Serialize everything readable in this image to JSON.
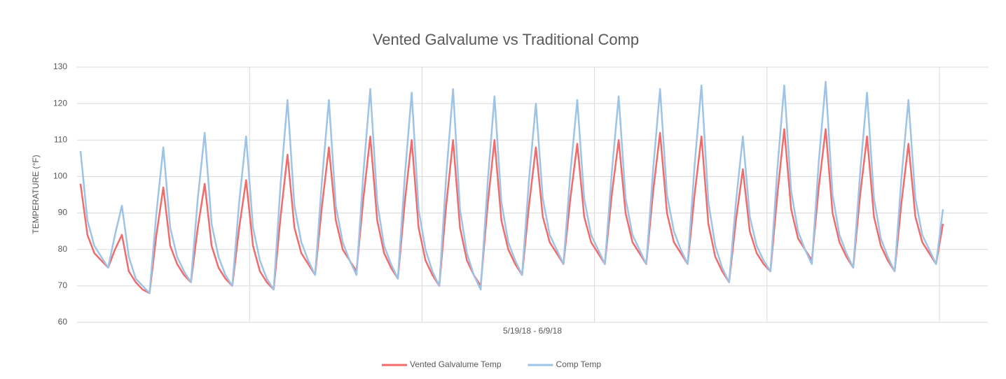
{
  "chart_data": {
    "type": "line",
    "title": "Vented Galvalume vs Traditional Comp",
    "x_label": "5/19/18 - 6/9/18",
    "y_label": "TEMPERATURE (°F)",
    "ylim": [
      60,
      130
    ],
    "yticks": [
      60,
      70,
      80,
      90,
      100,
      110,
      120,
      130
    ],
    "xlim": [
      0,
      132
    ],
    "xgrid_interval": 25,
    "grid": true,
    "legend": "bottom",
    "series": [
      {
        "name": "Vented Galvalume Temp",
        "color": "#f26b6b",
        "values": [
          98,
          84,
          79,
          77,
          75,
          80,
          84,
          74,
          71,
          69,
          68,
          84,
          97,
          81,
          76,
          73,
          71,
          86,
          98,
          81,
          75,
          72,
          70,
          86,
          99,
          81,
          74,
          71,
          69,
          89,
          106,
          86,
          79,
          76,
          73,
          92,
          108,
          88,
          80,
          77,
          74,
          94,
          111,
          88,
          79,
          75,
          72,
          93,
          110,
          86,
          77,
          73,
          70,
          92,
          110,
          86,
          77,
          73,
          70,
          92,
          110,
          88,
          80,
          76,
          73,
          92,
          108,
          89,
          82,
          79,
          76,
          94,
          109,
          89,
          82,
          79,
          76,
          95,
          110,
          90,
          82,
          79,
          76,
          96,
          112,
          90,
          82,
          79,
          76,
          95,
          111,
          87,
          78,
          74,
          71,
          88,
          102,
          85,
          79,
          76,
          74,
          95,
          113,
          91,
          83,
          80,
          77,
          97,
          113,
          90,
          82,
          78,
          75,
          95,
          111,
          89,
          81,
          77,
          74,
          93,
          109,
          89,
          82,
          79,
          76,
          87
        ]
      },
      {
        "name": "Comp Temp",
        "color": "#9dc3e6",
        "values": [
          107,
          88,
          81,
          78,
          75,
          84,
          92,
          78,
          72,
          70,
          68,
          90,
          108,
          86,
          78,
          74,
          71,
          94,
          112,
          87,
          78,
          73,
          70,
          93,
          111,
          86,
          77,
          72,
          69,
          98,
          121,
          92,
          82,
          77,
          73,
          99,
          121,
          92,
          82,
          77,
          73,
          101,
          124,
          93,
          81,
          76,
          72,
          100,
          123,
          91,
          80,
          74,
          70,
          100,
          124,
          91,
          79,
          73,
          69,
          98,
          122,
          93,
          82,
          77,
          73,
          99,
          120,
          94,
          84,
          80,
          76,
          101,
          121,
          94,
          84,
          80,
          76,
          101,
          122,
          94,
          84,
          80,
          76,
          102,
          124,
          95,
          85,
          80,
          76,
          103,
          125,
          93,
          81,
          75,
          71,
          93,
          111,
          89,
          81,
          77,
          74,
          102,
          125,
          96,
          85,
          80,
          76,
          104,
          126,
          95,
          84,
          79,
          75,
          101,
          123,
          94,
          83,
          78,
          74,
          100,
          121,
          94,
          84,
          80,
          76,
          91
        ]
      }
    ]
  }
}
